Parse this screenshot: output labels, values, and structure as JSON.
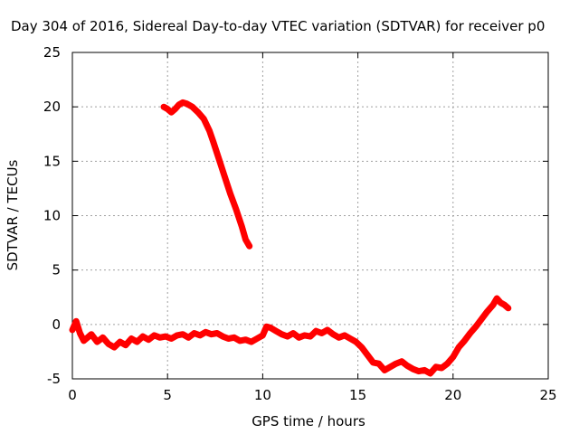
{
  "chart_data": {
    "type": "scatter",
    "title": "Day 304 of 2016, Sidereal Day-to-day VTEC variation (SDTVAR) for receiver p0",
    "xlabel": "GPS time / hours",
    "ylabel": "SDTVAR / TECUs",
    "xlim": [
      0,
      25
    ],
    "ylim": [
      -5,
      25
    ],
    "xticks": [
      0,
      5,
      10,
      15,
      20,
      25
    ],
    "yticks": [
      -5,
      0,
      5,
      10,
      15,
      20,
      25
    ],
    "grid": true,
    "legend": "none",
    "series_color": "#ff0000",
    "series": [
      {
        "name": "upper-track",
        "x": [
          4.8,
          5.0,
          5.2,
          5.4,
          5.6,
          5.8,
          6.0,
          6.3,
          6.6,
          6.9,
          7.2,
          7.4,
          7.7,
          8.0,
          8.3,
          8.6,
          8.9,
          9.1,
          9.3
        ],
        "y": [
          20.0,
          19.8,
          19.5,
          19.8,
          20.2,
          20.4,
          20.3,
          20.0,
          19.5,
          18.9,
          17.8,
          16.8,
          15.2,
          13.6,
          12.0,
          10.6,
          9.0,
          7.8,
          7.2
        ]
      },
      {
        "name": "main-track",
        "x": [
          0.0,
          0.2,
          0.4,
          0.6,
          0.8,
          1.0,
          1.3,
          1.6,
          1.9,
          2.2,
          2.5,
          2.8,
          3.1,
          3.4,
          3.7,
          4.0,
          4.3,
          4.6,
          4.9,
          5.2,
          5.5,
          5.8,
          6.1,
          6.4,
          6.7,
          7.0,
          7.3,
          7.6,
          7.9,
          8.2,
          8.5,
          8.8,
          9.1,
          9.4,
          9.7,
          10.0,
          10.2,
          10.4,
          10.7,
          11.0,
          11.3,
          11.6,
          11.9,
          12.2,
          12.5,
          12.8,
          13.1,
          13.4,
          13.7,
          14.0,
          14.3,
          14.6,
          14.9,
          15.2,
          15.5,
          15.8,
          16.1,
          16.4,
          16.7,
          17.0,
          17.3,
          17.6,
          17.9,
          18.2,
          18.5,
          18.8,
          19.1,
          19.4,
          19.7,
          20.0,
          20.3,
          20.6,
          20.9,
          21.2,
          21.5,
          21.8,
          22.1,
          22.3,
          22.5,
          22.7,
          22.9
        ],
        "y": [
          -0.5,
          0.3,
          -0.8,
          -1.5,
          -1.2,
          -0.9,
          -1.6,
          -1.2,
          -1.8,
          -2.1,
          -1.6,
          -1.9,
          -1.3,
          -1.6,
          -1.1,
          -1.4,
          -1.0,
          -1.2,
          -1.1,
          -1.3,
          -1.0,
          -0.9,
          -1.2,
          -0.8,
          -1.0,
          -0.7,
          -0.9,
          -0.8,
          -1.1,
          -1.3,
          -1.2,
          -1.5,
          -1.4,
          -1.6,
          -1.3,
          -1.0,
          -0.2,
          -0.3,
          -0.6,
          -0.9,
          -1.1,
          -0.8,
          -1.2,
          -1.0,
          -1.1,
          -0.6,
          -0.8,
          -0.5,
          -0.9,
          -1.2,
          -1.0,
          -1.3,
          -1.6,
          -2.1,
          -2.8,
          -3.5,
          -3.6,
          -4.2,
          -3.9,
          -3.6,
          -3.4,
          -3.8,
          -4.1,
          -4.3,
          -4.2,
          -4.5,
          -3.9,
          -4.0,
          -3.6,
          -3.0,
          -2.1,
          -1.5,
          -0.8,
          -0.2,
          0.5,
          1.2,
          1.8,
          2.4,
          2.0,
          1.8,
          1.5
        ]
      }
    ]
  }
}
